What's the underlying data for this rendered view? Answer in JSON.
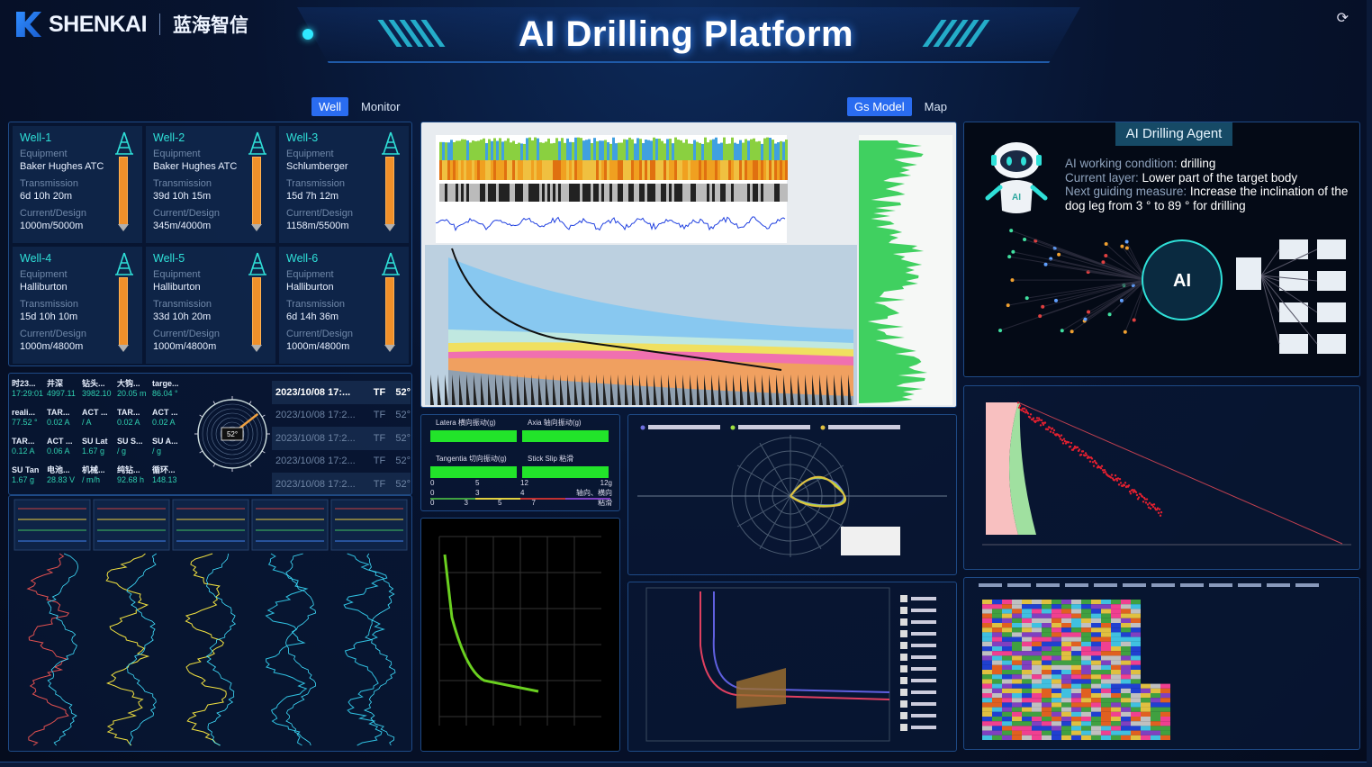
{
  "header": {
    "brand": "SHENKAI",
    "brand_cn": "蓝海智信",
    "title": "AI Drilling Platform",
    "refresh_icon": "refresh-icon"
  },
  "left_tabs": [
    {
      "label": "Well",
      "active": true
    },
    {
      "label": "Monitor",
      "active": false
    }
  ],
  "right_tabs": [
    {
      "label": "Gs Model",
      "active": true
    },
    {
      "label": "Map",
      "active": false
    }
  ],
  "labels": {
    "equipment": "Equipment",
    "transmission": "Transmission",
    "current_design": "Current/Design"
  },
  "wells": [
    {
      "name": "Well-1",
      "equipment": "Baker Hughes ATC",
      "transmission": "6d 10h 20m",
      "current_design": "1000m/5000m"
    },
    {
      "name": "Well-2",
      "equipment": "Baker Hughes ATC",
      "transmission": "39d 10h 15m",
      "current_design": "345m/4000m"
    },
    {
      "name": "Well-3",
      "equipment": "Schlumberger",
      "transmission": "15d 7h 12m",
      "current_design": "1158m/5500m"
    },
    {
      "name": "Well-4",
      "equipment": "Halliburton",
      "transmission": "15d 10h 10m",
      "current_design": "1000m/4800m"
    },
    {
      "name": "Well-5",
      "equipment": "Halliburton",
      "transmission": "33d 10h 20m",
      "current_design": "1000m/4800m"
    },
    {
      "name": "Well-6",
      "equipment": "Halliburton",
      "transmission": "6d 14h 36m",
      "current_design": "1000m/4800m"
    }
  ],
  "telemetry": [
    {
      "label": "时23...",
      "value": "17:29:01"
    },
    {
      "label": "井深",
      "value": "4997.11"
    },
    {
      "label": "钻头...",
      "value": "3982.10"
    },
    {
      "label": "大钩...",
      "value": "20.05 m"
    },
    {
      "label": "targe...",
      "value": "86.04 °"
    },
    {
      "label": "reali...",
      "value": "77.52 °"
    },
    {
      "label": "TAR...",
      "value": "0.02 A"
    },
    {
      "label": "ACT ...",
      "value": "/ A"
    },
    {
      "label": "TAR...",
      "value": "0.02 A"
    },
    {
      "label": "ACT ...",
      "value": "0.02 A"
    },
    {
      "label": "TAR...",
      "value": "0.12 A"
    },
    {
      "label": "ACT ...",
      "value": "0.06 A"
    },
    {
      "label": "SU Lat",
      "value": "1.67 g"
    },
    {
      "label": "SU S...",
      "value": "/ g"
    },
    {
      "label": "SU A...",
      "value": "/ g"
    },
    {
      "label": "SU Tan",
      "value": "1.67 g"
    },
    {
      "label": "电池...",
      "value": "28.83 V"
    },
    {
      "label": "机械...",
      "value": "/ m/h"
    },
    {
      "label": "纯钻...",
      "value": "92.68 h"
    },
    {
      "label": "循环...",
      "value": "148.13"
    }
  ],
  "toolface": {
    "value": "52°",
    "angle_deg": 52
  },
  "toolface_log": [
    {
      "time": "2023/10/08 17:...",
      "type": "TF",
      "value": "52°"
    },
    {
      "time": "2023/10/08 17:2...",
      "type": "TF",
      "value": "52°"
    },
    {
      "time": "2023/10/08 17:2...",
      "type": "TF",
      "value": "52°"
    },
    {
      "time": "2023/10/08 17:2...",
      "type": "TF",
      "value": "52°"
    },
    {
      "time": "2023/10/08 17:2...",
      "type": "TF",
      "value": "52°"
    }
  ],
  "vibration": {
    "bars": [
      {
        "label": "Latera 横向振动(g)"
      },
      {
        "label": "Axia 轴向振动(g)"
      },
      {
        "label": "Tangentia 切向振动(g)"
      },
      {
        "label": "Stick Slip 粘滑"
      }
    ],
    "scales": [
      [
        "0",
        "5",
        "12",
        "12g"
      ],
      [
        "0",
        "3",
        "4",
        "轴向、横向"
      ],
      [
        "0",
        "3",
        "5",
        "7",
        "粘滑"
      ]
    ]
  },
  "agent": {
    "title": "AI Drilling Agent",
    "lines": [
      {
        "key": "AI working condition: ",
        "value": "drilling"
      },
      {
        "key": "Current layer: ",
        "value": "Lower part of the target body"
      },
      {
        "key": "Next guiding measure: ",
        "value": "Increase the inclination of the dog leg from 3 ° to 89 ° for drilling"
      }
    ],
    "badge": "AI"
  },
  "colors": {
    "accent": "#2a6cf0",
    "teal": "#2fe0d8",
    "green": "#22e42a",
    "orange": "#f0902a"
  }
}
